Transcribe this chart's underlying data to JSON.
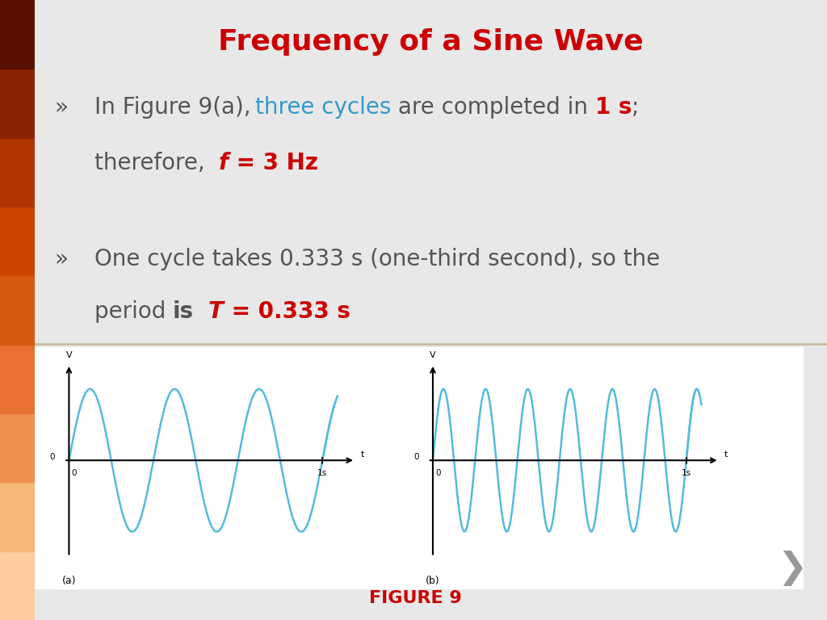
{
  "title": "Frequency of a Sine Wave",
  "title_color": "#CC0000",
  "title_fontsize": 26,
  "bg_color": "#E8E8E8",
  "plot_bg_color": "#F5F5F5",
  "sidebar_colors": [
    "#5A1000",
    "#8B2200",
    "#B03500",
    "#CC4400",
    "#D85A10",
    "#E87030",
    "#F09050",
    "#F8B878",
    "#FFCCA0"
  ],
  "bullet_char": "»",
  "wave_color": "#55BBDD",
  "axis_color": "#000000",
  "freq_a": 3,
  "freq_b": 6,
  "label_a": "(a)",
  "label_b": "(b)",
  "fig_label": "FIGURE 9",
  "fig_label_color": "#CC0000",
  "text_color": "#555555",
  "separator_color": "#C8B89A",
  "chevron_color": "#999999",
  "fs_main": 20,
  "fs_small": 9
}
